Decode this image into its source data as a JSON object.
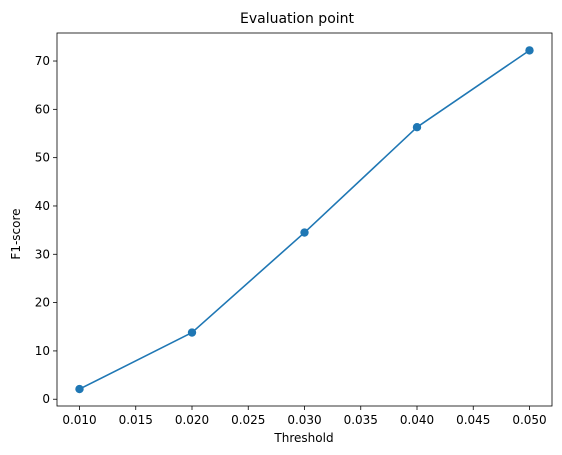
{
  "chart_data": {
    "type": "line",
    "title": "Evaluation point",
    "xlabel": "Threshold",
    "ylabel": "F1-score",
    "xlim": [
      0.008,
      0.052
    ],
    "ylim": [
      -1.4,
      75.8
    ],
    "x_ticks": [
      "0.010",
      "0.015",
      "0.020",
      "0.025",
      "0.030",
      "0.035",
      "0.040",
      "0.045",
      "0.050"
    ],
    "y_ticks": [
      "0",
      "10",
      "20",
      "30",
      "40",
      "50",
      "60",
      "70"
    ],
    "grid": false,
    "series": [
      {
        "x": [
          0.01,
          0.02,
          0.03,
          0.04,
          0.05
        ],
        "y": [
          2.1,
          13.8,
          34.5,
          56.3,
          72.2
        ],
        "color": "#1f77b4",
        "marker": "circle"
      }
    ]
  }
}
